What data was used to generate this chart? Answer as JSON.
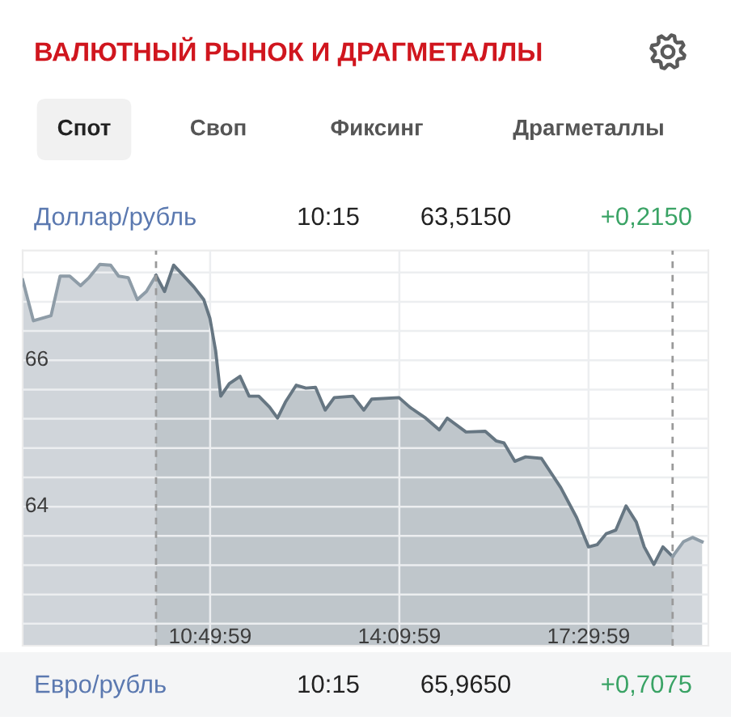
{
  "chart_data": {
    "type": "area",
    "title": "ВАЛЮТНЫЙ РЫНОК И ДРАГМЕТАЛЛЫ",
    "annotations": [
      "Спот",
      "Своп",
      "Фиксинг",
      "Драгметаллы",
      "Доллар/рубль",
      "10:15",
      "63,5150",
      "+0,2150",
      "Евро/рубль",
      "10:15",
      "65,9650",
      "+0,7075"
    ],
    "series": [
      {
        "color": "#8e9ca7",
        "x": [
          7.53,
          7.72,
          8.03,
          8.19,
          8.36,
          8.55,
          8.7,
          8.89,
          9.08,
          9.22,
          9.39,
          9.55,
          9.71,
          9.88
        ],
        "values": [
          67.1,
          66.54,
          66.61,
          67.15,
          67.15,
          67.02,
          67.13,
          67.31,
          67.3,
          67.15,
          67.13,
          66.83,
          66.94,
          67.16
        ]
      },
      {
        "color": "#667682",
        "x": [
          9.88,
          10.03,
          10.19,
          10.36,
          10.55,
          10.72,
          10.83,
          10.93,
          11.02,
          11.17,
          11.36,
          11.52,
          11.69,
          11.88,
          12.02,
          12.16,
          12.35,
          12.52,
          12.69,
          12.86,
          13.02,
          13.35,
          13.54,
          13.68,
          14.16,
          14.35,
          14.63,
          14.87,
          15.01,
          15.34,
          15.68,
          15.87,
          16.01,
          16.2,
          16.39,
          16.67,
          17.01,
          17.29,
          17.5,
          17.65,
          17.81,
          17.98,
          18.16,
          18.34,
          18.48,
          18.65,
          18.81,
          18.98
        ],
        "values": [
          67.16,
          66.94,
          67.3,
          67.16,
          67.0,
          66.83,
          66.57,
          66.13,
          65.51,
          65.68,
          65.78,
          65.51,
          65.51,
          65.36,
          65.21,
          65.43,
          65.66,
          65.62,
          65.63,
          65.32,
          65.49,
          65.51,
          65.32,
          65.47,
          65.49,
          65.36,
          65.21,
          65.05,
          65.21,
          65.02,
          65.03,
          64.9,
          64.87,
          64.62,
          64.68,
          64.66,
          64.26,
          63.85,
          63.45,
          63.48,
          63.63,
          63.68,
          64.01,
          63.79,
          63.45,
          63.21,
          63.45,
          63.32
        ]
      },
      {
        "color": "#8e9ca7",
        "x": [
          18.98,
          19.17,
          19.33,
          19.5
        ],
        "values": [
          63.32,
          63.52,
          63.58,
          63.52
        ]
      }
    ],
    "xlim": [
      7.53,
      19.61
    ],
    "xticks": [
      {
        "value": 10.8331,
        "label": "10:49:59"
      },
      {
        "value": 14.1664,
        "label": "14:09:59"
      },
      {
        "value": 17.4997,
        "label": "17:29:59"
      }
    ],
    "ylim": [
      62.1,
      67.5
    ],
    "yticks": [
      {
        "value": 62.4,
        "label": null
      },
      {
        "value": 62.8,
        "label": null
      },
      {
        "value": 63.2,
        "label": null
      },
      {
        "value": 63.6,
        "label": null
      },
      64,
      {
        "value": 64.4,
        "label": null
      },
      {
        "value": 64.8,
        "label": null
      },
      {
        "value": 65.2,
        "label": null
      },
      {
        "value": 65.6,
        "label": null
      },
      66,
      {
        "value": 66.4,
        "label": null
      },
      {
        "value": 66.8,
        "label": null
      },
      {
        "value": 67.2,
        "label": null
      }
    ],
    "grid": true,
    "ref_lines": [
      {
        "axis": "x",
        "value": 9.88,
        "color": "#9a9a9a",
        "line_style": "dashed"
      },
      {
        "axis": "x",
        "value": 18.98,
        "color": "#9a9a9a",
        "line_style": "dashed"
      }
    ]
  }
}
